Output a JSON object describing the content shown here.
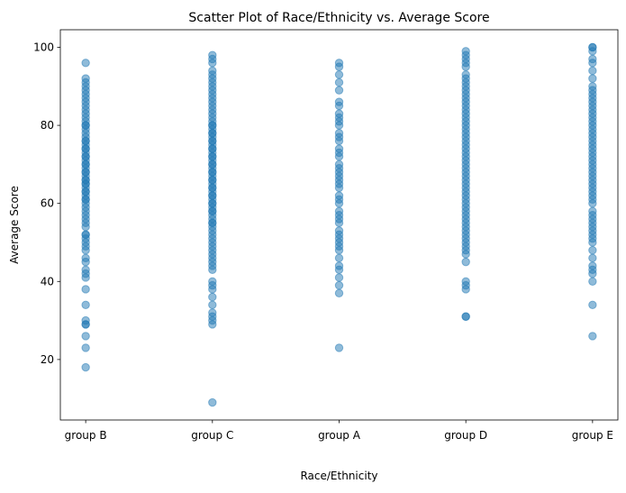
{
  "chart_data": {
    "type": "scatter",
    "title": "Scatter Plot of Race/Ethnicity vs. Average Score",
    "xlabel": "Race/Ethnicity",
    "ylabel": "Average Score",
    "categories": [
      "group B",
      "group C",
      "group A",
      "group D",
      "group E"
    ],
    "ylim": [
      4.5,
      104.5
    ],
    "yticks": [
      20,
      40,
      60,
      80,
      100
    ],
    "grid": false,
    "legend": "none",
    "marker_color": "#1f77b4",
    "marker_alpha": 0.5,
    "series": [
      {
        "category": "group B",
        "values": [
          18,
          23,
          26,
          29,
          29,
          30,
          34,
          38,
          41,
          42,
          43,
          45,
          46,
          48,
          49,
          50,
          51,
          52,
          52,
          54,
          55,
          56,
          57,
          58,
          59,
          60,
          61,
          61,
          62,
          63,
          63,
          64,
          65,
          65,
          66,
          66,
          67,
          68,
          68,
          69,
          70,
          70,
          71,
          72,
          72,
          73,
          74,
          74,
          75,
          76,
          76,
          77,
          78,
          79,
          80,
          80,
          81,
          82,
          83,
          84,
          85,
          86,
          87,
          88,
          89,
          90,
          91,
          92,
          96
        ]
      },
      {
        "category": "group C",
        "values": [
          9,
          29,
          30,
          31,
          32,
          34,
          36,
          38,
          39,
          40,
          43,
          44,
          45,
          46,
          47,
          48,
          49,
          50,
          51,
          52,
          53,
          54,
          55,
          55,
          56,
          57,
          58,
          58,
          59,
          60,
          60,
          61,
          62,
          62,
          63,
          64,
          64,
          65,
          66,
          66,
          67,
          68,
          68,
          69,
          70,
          70,
          71,
          72,
          72,
          73,
          74,
          74,
          75,
          76,
          76,
          77,
          78,
          78,
          79,
          80,
          80,
          81,
          82,
          83,
          84,
          85,
          86,
          87,
          88,
          89,
          90,
          91,
          92,
          93,
          94,
          96,
          97,
          98
        ]
      },
      {
        "category": "group A",
        "values": [
          23,
          37,
          39,
          41,
          43,
          44,
          46,
          48,
          49,
          50,
          51,
          52,
          53,
          55,
          56,
          57,
          58,
          60,
          61,
          62,
          64,
          65,
          66,
          67,
          68,
          69,
          70,
          72,
          73,
          74,
          76,
          77,
          78,
          80,
          81,
          82,
          83,
          85,
          86,
          89,
          91,
          93,
          95,
          96
        ]
      },
      {
        "category": "group D",
        "values": [
          31,
          31,
          38,
          39,
          40,
          45,
          47,
          48,
          49,
          50,
          51,
          52,
          53,
          54,
          55,
          56,
          57,
          58,
          59,
          60,
          61,
          62,
          63,
          64,
          65,
          66,
          67,
          68,
          69,
          70,
          71,
          72,
          73,
          74,
          75,
          76,
          77,
          78,
          79,
          80,
          81,
          82,
          83,
          84,
          85,
          86,
          87,
          88,
          89,
          90,
          91,
          92,
          93,
          95,
          96,
          97,
          98,
          99
        ]
      },
      {
        "category": "group E",
        "values": [
          26,
          34,
          40,
          42,
          43,
          44,
          46,
          48,
          50,
          51,
          52,
          53,
          54,
          55,
          56,
          57,
          58,
          60,
          61,
          62,
          63,
          64,
          65,
          66,
          67,
          68,
          69,
          70,
          71,
          72,
          73,
          74,
          75,
          76,
          77,
          78,
          79,
          80,
          81,
          82,
          83,
          84,
          85,
          86,
          87,
          88,
          89,
          90,
          92,
          94,
          96,
          97,
          99,
          100,
          100
        ]
      }
    ]
  }
}
